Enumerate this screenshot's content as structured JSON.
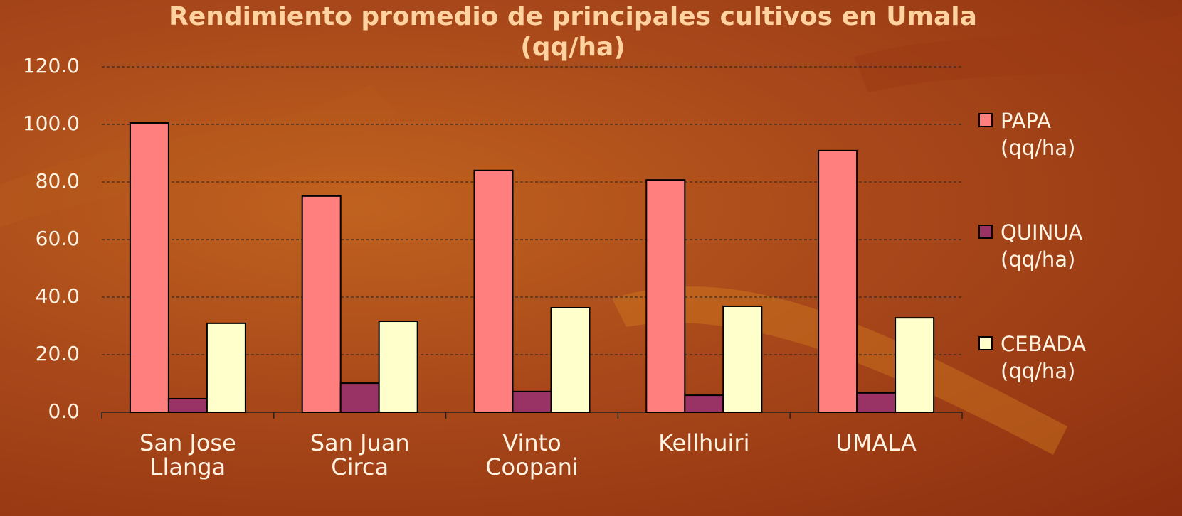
{
  "chart_data": {
    "type": "bar",
    "title": "Rendimiento promedio de principales cultivos en Umala (qq/ha)",
    "categories": [
      "San Jose Llanga",
      "San Juan Circa",
      "Vinto Coopani",
      "Kellhuiri",
      "UMALA"
    ],
    "series": [
      {
        "name": "PAPA (qq/ha)",
        "color": "#ff7f7f",
        "values": [
          100.5,
          75.1,
          84.0,
          80.7,
          90.9
        ]
      },
      {
        "name": "QUINUA (qq/ha)",
        "color": "#993366",
        "values": [
          4.7,
          10.1,
          7.2,
          5.9,
          6.7
        ]
      },
      {
        "name": "CEBADA (qq/ha)",
        "color": "#ffffcc",
        "values": [
          30.9,
          31.6,
          36.3,
          36.8,
          32.8
        ]
      }
    ],
    "ylim": [
      0,
      120
    ],
    "yticks": [
      {
        "value": 0,
        "label": "0.0"
      },
      {
        "value": 20,
        "label": "20.0"
      },
      {
        "value": 40,
        "label": "40.0"
      },
      {
        "value": 60,
        "label": "60.0"
      },
      {
        "value": 80,
        "label": "80.0"
      },
      {
        "value": 100,
        "label": "100.0"
      },
      {
        "value": 120,
        "label": "120.0"
      }
    ],
    "grid": true,
    "legend": "right"
  }
}
